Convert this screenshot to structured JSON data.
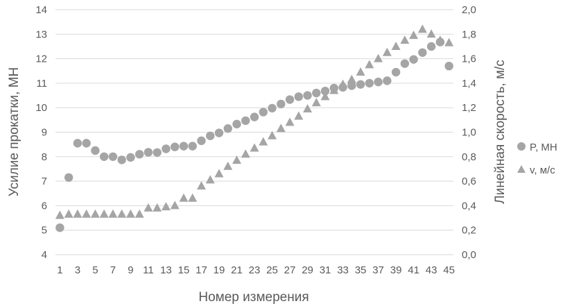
{
  "colors": {
    "marker": "#a5a5a5",
    "grid": "#d9d9d9",
    "text": "#595959"
  },
  "chart_data": {
    "type": "scatter",
    "title": "",
    "xlabel": "Номер измерения",
    "ylabel": "Усилие прокатки, МН",
    "y2label": "Линейная скорость, м/с",
    "x_ticks": [
      "1",
      "3",
      "5",
      "7",
      "9",
      "11",
      "13",
      "15",
      "17",
      "19",
      "21",
      "23",
      "25",
      "27",
      "29",
      "31",
      "33",
      "35",
      "37",
      "39",
      "41",
      "43",
      "45"
    ],
    "y_ticks": [
      "4",
      "5",
      "6",
      "7",
      "8",
      "9",
      "10",
      "11",
      "12",
      "13",
      "14"
    ],
    "y2_ticks": [
      "0,0",
      "0,2",
      "0,4",
      "0,6",
      "0,8",
      "1,0",
      "1,2",
      "1,4",
      "1,6",
      "1,8",
      "2,0"
    ],
    "xlim": [
      0.5,
      45.5
    ],
    "ylim": [
      4,
      14
    ],
    "y2lim": [
      0,
      2
    ],
    "grid": "horizontal",
    "legend_position": "right",
    "series": [
      {
        "name": "P, МН",
        "marker": "circle",
        "axis": "left",
        "x": [
          1,
          2,
          3,
          4,
          5,
          6,
          7,
          8,
          9,
          10,
          11,
          12,
          13,
          14,
          15,
          16,
          17,
          18,
          19,
          20,
          21,
          22,
          23,
          24,
          25,
          26,
          27,
          28,
          29,
          30,
          31,
          32,
          33,
          34,
          35,
          36,
          37,
          38,
          39,
          40,
          41,
          42,
          43,
          44,
          45
        ],
        "values": [
          5.1,
          7.15,
          8.55,
          8.55,
          8.25,
          8.0,
          8.0,
          7.87,
          7.97,
          8.1,
          8.18,
          8.17,
          8.32,
          8.4,
          8.43,
          8.43,
          8.65,
          8.85,
          8.97,
          9.15,
          9.33,
          9.47,
          9.62,
          9.82,
          9.98,
          10.15,
          10.33,
          10.45,
          10.5,
          10.6,
          10.68,
          10.8,
          10.83,
          10.9,
          10.95,
          11.0,
          11.05,
          11.1,
          11.45,
          11.8,
          11.97,
          12.25,
          12.5,
          12.68,
          11.7
        ]
      },
      {
        "name": "v, м/с",
        "marker": "triangle",
        "axis": "right",
        "x": [
          1,
          2,
          3,
          4,
          5,
          6,
          7,
          8,
          9,
          10,
          11,
          12,
          13,
          14,
          15,
          16,
          17,
          18,
          19,
          20,
          21,
          22,
          23,
          24,
          25,
          26,
          27,
          28,
          29,
          30,
          31,
          32,
          33,
          34,
          35,
          36,
          37,
          38,
          39,
          40,
          41,
          42,
          43,
          44,
          45
        ],
        "values": [
          0.32,
          0.33,
          0.33,
          0.33,
          0.33,
          0.33,
          0.33,
          0.33,
          0.33,
          0.33,
          0.38,
          0.38,
          0.39,
          0.4,
          0.46,
          0.46,
          0.56,
          0.61,
          0.66,
          0.72,
          0.77,
          0.82,
          0.87,
          0.92,
          0.97,
          1.03,
          1.08,
          1.13,
          1.19,
          1.24,
          1.29,
          1.34,
          1.39,
          1.43,
          1.49,
          1.55,
          1.6,
          1.65,
          1.7,
          1.75,
          1.79,
          1.84,
          1.8,
          1.75,
          1.73
        ]
      }
    ]
  }
}
